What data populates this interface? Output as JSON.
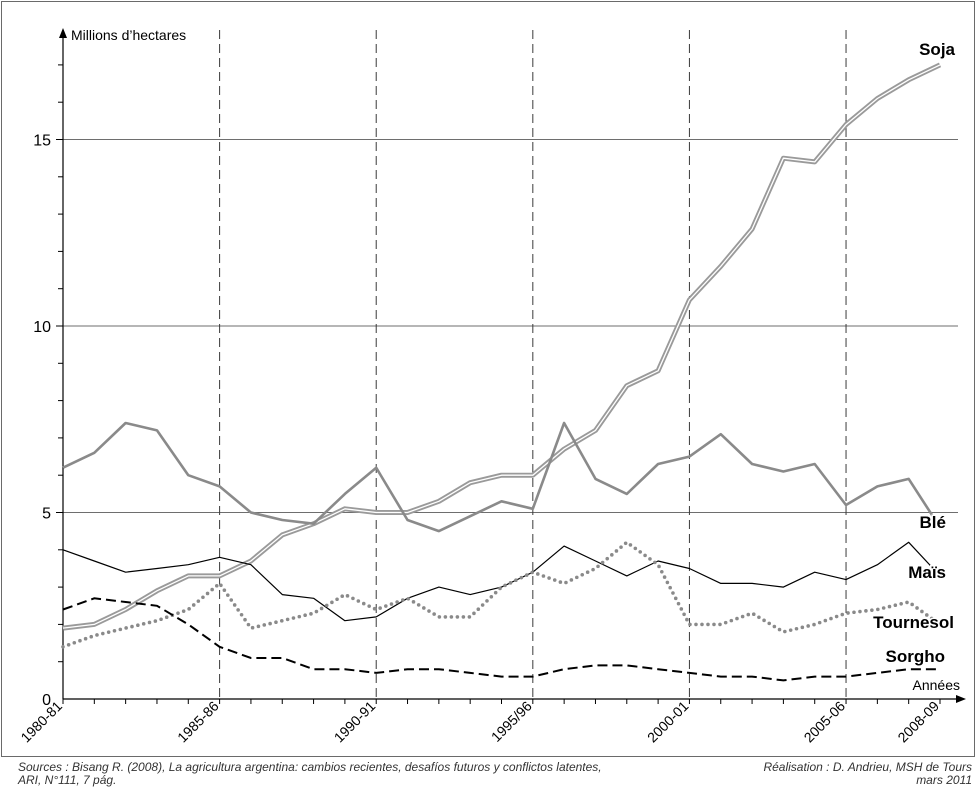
{
  "chart_data": {
    "type": "line",
    "ylabel": "Millions d’hectares",
    "xlabel": "Années",
    "ylim": [
      0,
      17.5
    ],
    "yticks": [
      0,
      5,
      10,
      15
    ],
    "hgrid": [
      5,
      10,
      15
    ],
    "x_labels": [
      {
        "label": "1980-81",
        "index": 0
      },
      {
        "label": "1985-86",
        "index": 5
      },
      {
        "label": "1990-91",
        "index": 10
      },
      {
        "label": "1995/96",
        "index": 15
      },
      {
        "label": "2000-01",
        "index": 20
      },
      {
        "label": "2005-06",
        "index": 25
      },
      {
        "label": "2008-09",
        "index": 28
      }
    ],
    "vgrid_dashed_indices": [
      5,
      10,
      15,
      20,
      25
    ],
    "series": [
      {
        "name": "Soja",
        "values": [
          1.9,
          2.0,
          2.4,
          2.9,
          3.3,
          3.3,
          3.7,
          4.4,
          4.7,
          5.1,
          5.0,
          5.0,
          5.3,
          5.8,
          6.0,
          6.0,
          6.7,
          7.2,
          8.4,
          8.8,
          10.7,
          11.6,
          12.6,
          14.5,
          14.4,
          15.4,
          16.1,
          16.6,
          17.0
        ],
        "color": "#9a9a9a",
        "style": "double"
      },
      {
        "name": "Blé",
        "values": [
          6.2,
          6.6,
          7.4,
          7.2,
          6.0,
          5.7,
          5.0,
          4.8,
          4.7,
          5.5,
          6.2,
          4.8,
          4.5,
          4.9,
          5.3,
          5.1,
          7.4,
          5.9,
          5.5,
          6.3,
          6.5,
          7.1,
          6.3,
          6.1,
          6.3,
          5.2,
          5.7,
          5.9,
          4.6
        ],
        "color": "#8a8a8a",
        "style": "solid-thick"
      },
      {
        "name": "Maïs",
        "values": [
          4.0,
          3.7,
          3.4,
          3.5,
          3.6,
          3.8,
          3.6,
          2.8,
          2.7,
          2.1,
          2.2,
          2.7,
          3.0,
          2.8,
          3.0,
          3.4,
          4.1,
          3.7,
          3.3,
          3.7,
          3.5,
          3.1,
          3.1,
          3.0,
          3.4,
          3.2,
          3.6,
          4.2,
          3.3
        ],
        "color": "#000000",
        "style": "solid-thin"
      },
      {
        "name": "Tournesol",
        "values": [
          1.4,
          1.7,
          1.9,
          2.1,
          2.4,
          3.1,
          1.9,
          2.1,
          2.3,
          2.8,
          2.4,
          2.7,
          2.2,
          2.2,
          3.0,
          3.4,
          3.1,
          3.5,
          4.2,
          3.6,
          2.0,
          2.0,
          2.3,
          1.8,
          2.0,
          2.3,
          2.4,
          2.6,
          2.0
        ],
        "color": "#8a8a8a",
        "style": "dotted"
      },
      {
        "name": "Sorgho",
        "values": [
          2.4,
          2.7,
          2.6,
          2.5,
          2.0,
          1.4,
          1.1,
          1.1,
          0.8,
          0.8,
          0.7,
          0.8,
          0.8,
          0.7,
          0.6,
          0.6,
          0.8,
          0.9,
          0.9,
          0.8,
          0.7,
          0.6,
          0.6,
          0.5,
          0.6,
          0.6,
          0.7,
          0.8,
          0.8
        ],
        "color": "#000000",
        "style": "dashed"
      }
    ]
  },
  "footer": {
    "source_line1": "Sources : Bisang R. (2008), La agricultura argentina: cambios recientes, desafíos futuros y conflictos latentes,",
    "source_line2": "ARI, N°111, 7 pág.",
    "credit_line1": "Réalisation : D. Andrieu, MSH de Tours",
    "credit_line2": "mars 2011"
  }
}
